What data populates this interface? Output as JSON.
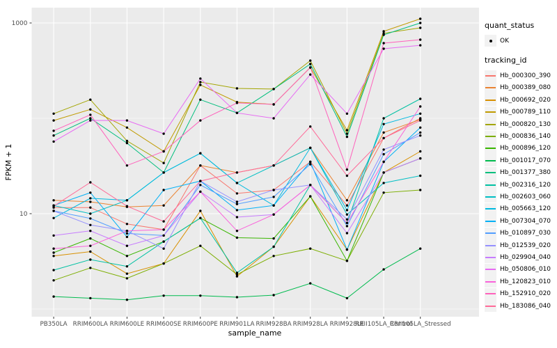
{
  "figure": {
    "panel_bg": "#EBEBEB",
    "grid_color": "#FFFFFF",
    "tick_label_color": "#4D4D4D",
    "axis_title_color": "#000000",
    "point_color": "#000000"
  },
  "y_axis": {
    "title": "FPKM + 1",
    "major_ticks": [
      {
        "label": "1000",
        "value": 1000
      },
      {
        "label": "10",
        "value": 10
      }
    ],
    "minor_values": [
      100,
      1
    ]
  },
  "x_axis": {
    "title": "sample_name"
  },
  "legend": {
    "quant_status": {
      "title": "quant_status",
      "items": [
        {
          "label": "OK",
          "key": "point"
        }
      ]
    },
    "tracking": {
      "title": "tracking_id"
    }
  },
  "chart_data": {
    "type": "line",
    "title": "",
    "xlabel": "sample_name",
    "ylabel": "FPKM + 1",
    "y_scale": "log10",
    "ylim": [
      0.85,
      1450
    ],
    "grid": true,
    "legend_position": "right",
    "marker": "black-point",
    "categories": [
      "PB350LA",
      "RRIM600LA",
      "RRIM600LE",
      "RRIM600SE",
      "RRIM600PE",
      "RRIM901LA",
      "RRIM928BA",
      "RRIM928LA",
      "RRIM928LE",
      "RRII105LA_Control",
      "RRII105LA_Stressed"
    ],
    "series": [
      {
        "name": "Hb_000300_390",
        "color": "#F8766D",
        "values": [
          11.6,
          11.6,
          7.8,
          6.8,
          32,
          16.3,
          17.7,
          35,
          12.2,
          62,
          100
        ]
      },
      {
        "name": "Hb_000389_080",
        "color": "#EA8331",
        "values": [
          13.8,
          13.3,
          11.8,
          12.2,
          32,
          27,
          32,
          49,
          13.8,
          71,
          97
        ]
      },
      {
        "name": "Hb_000692_020",
        "color": "#D89000",
        "values": [
          3.6,
          4.0,
          2.35,
          3.0,
          10.7,
          2.2,
          4.5,
          15.2,
          4.2,
          27,
          45
        ]
      },
      {
        "name": "Hb_000789_110",
        "color": "#C09B00",
        "values": [
          95,
          124,
          80,
          45,
          224,
          148,
          140,
          341,
          75,
          817,
          1107
        ]
      },
      {
        "name": "Hb_000820_130",
        "color": "#A3A500",
        "values": [
          112,
          157,
          58,
          34,
          240,
          206,
          203,
          403,
          69,
          780,
          889
        ]
      },
      {
        "name": "Hb_000836_140",
        "color": "#7CAE00",
        "values": [
          2.0,
          2.7,
          2.1,
          3.0,
          4.6,
          2.3,
          3.6,
          4.3,
          3.2,
          16.6,
          17.7
        ]
      },
      {
        "name": "Hb_000896_120",
        "color": "#39B600",
        "values": [
          3.9,
          5.5,
          3.6,
          5.1,
          9.0,
          5.6,
          5.5,
          15.2,
          3.2,
          27,
          38
        ]
      },
      {
        "name": "Hb_001017_070",
        "color": "#00BB4E",
        "values": [
          1.35,
          1.3,
          1.25,
          1.38,
          1.38,
          1.33,
          1.4,
          1.86,
          1.3,
          2.6,
          4.3
        ]
      },
      {
        "name": "Hb_001377_380",
        "color": "#00BF7D",
        "values": [
          66,
          100,
          55,
          27,
          157,
          114,
          203,
          371,
          64,
          751,
          1000
        ]
      },
      {
        "name": "Hb_002316_120",
        "color": "#00C1A3",
        "values": [
          2.56,
          3.3,
          2.8,
          5.1,
          9.0,
          2.4,
          4.5,
          20,
          8.0,
          100,
          160
        ]
      },
      {
        "name": "Hb_002603_060",
        "color": "#00BFC4",
        "values": [
          12.2,
          10,
          13.8,
          27,
          43,
          21,
          32,
          49,
          9.8,
          21,
          25
        ]
      },
      {
        "name": "Hb_005663_120",
        "color": "#00BAE0",
        "values": [
          9.0,
          14.5,
          13.8,
          27,
          43,
          21,
          12.2,
          49,
          10.9,
          87,
          112
        ]
      },
      {
        "name": "Hb_007304_070",
        "color": "#00B0F6",
        "values": [
          12.2,
          16.6,
          5.7,
          17.7,
          22,
          10.9,
          12.2,
          35,
          4.2,
          35,
          80
        ]
      },
      {
        "name": "Hb_010897_030",
        "color": "#529EFF",
        "values": [
          10.7,
          8.9,
          6.2,
          5.9,
          20,
          12.6,
          15,
          33,
          7.4,
          42,
          71
        ]
      },
      {
        "name": "Hb_012539_020",
        "color": "#9590FF",
        "values": [
          10.7,
          7.6,
          6.6,
          4.3,
          22,
          13.3,
          17.7,
          20,
          8.7,
          47,
          66
        ]
      },
      {
        "name": "Hb_029904_040",
        "color": "#C77CFF",
        "values": [
          5.9,
          6.6,
          4.6,
          5.9,
          17,
          9.2,
          9.8,
          20,
          6.25,
          27,
          38
        ]
      },
      {
        "name": "Hb_050806_010",
        "color": "#E76BF3",
        "values": [
          57,
          95,
          95,
          69,
          261,
          114,
          100,
          288,
          112,
          537,
          583
        ]
      },
      {
        "name": "Hb_120823_010",
        "color": "#FA62DB",
        "values": [
          4.3,
          4.6,
          6.6,
          6.8,
          17,
          6.6,
          9.8,
          20,
          8.0,
          35,
          133
        ]
      },
      {
        "name": "Hb_152910_020",
        "color": "#FF62BC",
        "values": [
          74,
          109,
          32,
          45,
          95,
          145,
          140,
          341,
          29,
          614,
          668
        ]
      },
      {
        "name": "Hb_183086_040",
        "color": "#FF6A98",
        "values": [
          12,
          21.3,
          12,
          8.3,
          22,
          27,
          32,
          82,
          25,
          62,
          95
        ]
      }
    ]
  }
}
